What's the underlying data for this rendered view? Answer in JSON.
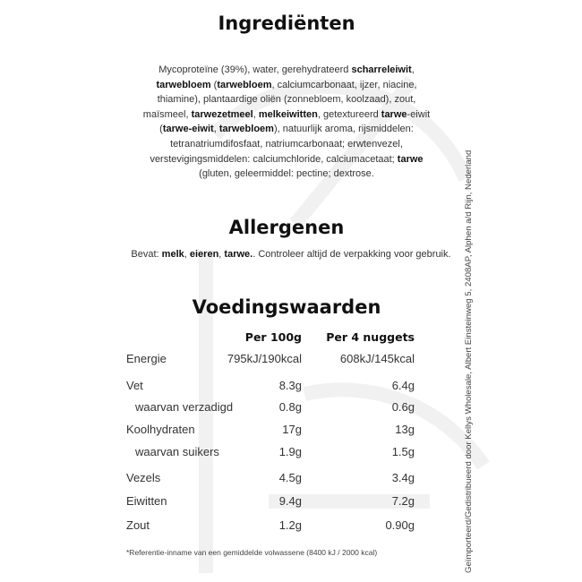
{
  "ingredients": {
    "title": "Ingrediënten",
    "segments": [
      {
        "text": "Mycoproteïne (39%), water, gerehydrateerd ",
        "bold": false
      },
      {
        "text": "scharreleiwit",
        "bold": true
      },
      {
        "text": ", ",
        "bold": false
      },
      {
        "text": "tarwebloem",
        "bold": true
      },
      {
        "text": " (",
        "bold": false
      },
      {
        "text": "tarwebloem",
        "bold": true
      },
      {
        "text": ", calciumcarbonaat, ijzer, niacine, thiamine), plantaardige oliën (zonnebloem, koolzaad), zout, maïsmeel, ",
        "bold": false
      },
      {
        "text": "tarwezetmeel",
        "bold": true
      },
      {
        "text": ", ",
        "bold": false
      },
      {
        "text": "melkeiwitten",
        "bold": true
      },
      {
        "text": ", getextureerd ",
        "bold": false
      },
      {
        "text": "tarwe",
        "bold": true
      },
      {
        "text": "-eiwit (",
        "bold": false
      },
      {
        "text": "tarwe-eiwit",
        "bold": true
      },
      {
        "text": ", ",
        "bold": false
      },
      {
        "text": "tarwebloem",
        "bold": true
      },
      {
        "text": "), natuurlijk aroma, rijsmiddelen: tetranatriumdifosfaat, natriumcarbonaat; erwtenvezel, verstevigingsmiddelen: calciumchloride, calciumacetaat; ",
        "bold": false
      },
      {
        "text": "tarwe",
        "bold": true
      },
      {
        "text": " (gluten, geleermiddel: pectine; dextrose.",
        "bold": false
      }
    ]
  },
  "allergens": {
    "title": "Allergenen",
    "segments": [
      {
        "text": "Bevat: ",
        "bold": false
      },
      {
        "text": "melk",
        "bold": true
      },
      {
        "text": ", ",
        "bold": false
      },
      {
        "text": "eieren",
        "bold": true
      },
      {
        "text": ", ",
        "bold": false
      },
      {
        "text": "tarwe.",
        "bold": true
      },
      {
        "text": ". Controleer altijd de verpakking voor gebruik.",
        "bold": false
      }
    ]
  },
  "nutrition": {
    "title": "Voedingswaarden",
    "headers": [
      "Per 100g",
      "Per 4 nuggets"
    ],
    "rows": [
      {
        "label": "Energie",
        "per100": "795kJ/190kcal",
        "per4": "608kJ/145kcal",
        "sub": false
      },
      {
        "label": "Vet",
        "per100": "8.3g",
        "per4": "6.4g",
        "sub": false
      },
      {
        "label": "waarvan verzadigd",
        "per100": "0.8g",
        "per4": "0.6g",
        "sub": true
      },
      {
        "label": "Koolhydraten",
        "per100": "17g",
        "per4": "13g",
        "sub": false
      },
      {
        "label": "waarvan suikers",
        "per100": "1.9g",
        "per4": "1.5g",
        "sub": true
      },
      {
        "label": "Vezels",
        "per100": "4.5g",
        "per4": "3.4g",
        "sub": false
      },
      {
        "label": "Eiwitten",
        "per100": "9.4g",
        "per4": "7.2g",
        "sub": false
      },
      {
        "label": "Zout",
        "per100": "1.2g",
        "per4": "0.90g",
        "sub": false
      }
    ],
    "footnote": "*Referentie-inname van een gemiddelde volwassene (8400 kJ / 2000 kcal)"
  },
  "importer_note": "Geïmporteerd/Gedistribueerd door Kellys Wholesale, Albert Einsteinweg 5, 2408AP, Alphen a/d Rijn, Nederland"
}
